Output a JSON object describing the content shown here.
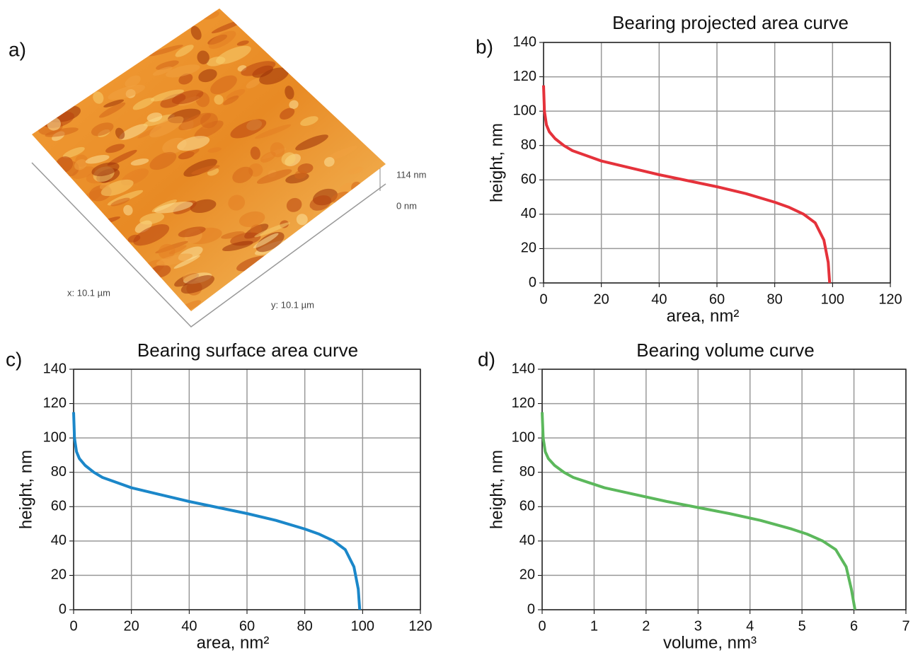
{
  "image": {
    "panel_label": "a)",
    "z_max": "114 nm",
    "z_min": "0 nm",
    "x_size": "x: 10.1 µm",
    "y_size": "y: 10.1 µm"
  },
  "chart_data": [
    {
      "type": "line",
      "panel_label": "b)",
      "title": "Bearing projected area curve",
      "xlabel": "area, nm²",
      "ylabel": "height, nm",
      "color": "#e5323b",
      "x": [
        0,
        0.3,
        1,
        2,
        4,
        7,
        10,
        15,
        20,
        30,
        40,
        50,
        60,
        70,
        80,
        85,
        90,
        94,
        97,
        98.5,
        99
      ],
      "values": [
        115,
        100,
        92,
        88,
        84,
        80,
        77,
        74,
        71,
        67,
        63,
        59.5,
        56,
        52,
        47,
        44,
        40,
        35,
        25,
        12,
        0
      ],
      "xlim": [
        0,
        120
      ],
      "xticks": [
        0,
        20,
        40,
        60,
        80,
        100,
        120
      ],
      "ylim": [
        0,
        140
      ],
      "yticks": [
        0,
        20,
        40,
        60,
        80,
        100,
        120,
        140
      ],
      "grid": true
    },
    {
      "type": "line",
      "panel_label": "c)",
      "title": "Bearing surface area curve",
      "xlabel": "area, nm²",
      "ylabel": "height, nm",
      "color": "#1b87c9",
      "x": [
        0,
        0.3,
        1,
        2,
        4,
        7,
        10,
        15,
        20,
        30,
        40,
        50,
        60,
        70,
        80,
        85,
        90,
        94,
        97,
        98.5,
        99
      ],
      "values": [
        115,
        100,
        92,
        88,
        84,
        80,
        77,
        74,
        71,
        67,
        63,
        59.5,
        56,
        52,
        47,
        44,
        40,
        35,
        25,
        12,
        0
      ],
      "xlim": [
        0,
        120
      ],
      "xticks": [
        0,
        20,
        40,
        60,
        80,
        100,
        120
      ],
      "ylim": [
        0,
        140
      ],
      "yticks": [
        0,
        20,
        40,
        60,
        80,
        100,
        120,
        140
      ],
      "grid": true
    },
    {
      "type": "line",
      "panel_label": "d)",
      "title": "Bearing volume curve",
      "xlabel": "volume, nm³",
      "ylabel": "height, nm",
      "color": "#5cb85c",
      "x": [
        0,
        0.02,
        0.06,
        0.12,
        0.24,
        0.42,
        0.6,
        0.9,
        1.2,
        1.8,
        2.4,
        3.0,
        3.6,
        4.2,
        4.8,
        5.1,
        5.4,
        5.65,
        5.85,
        5.95,
        6.02
      ],
      "values": [
        115,
        100,
        92,
        88,
        84,
        80,
        77,
        74,
        71,
        67,
        63,
        59.5,
        56,
        52,
        47,
        44,
        40,
        35,
        25,
        12,
        0
      ],
      "xlim": [
        0,
        7
      ],
      "xticks": [
        0,
        1,
        2,
        3,
        4,
        5,
        6,
        7
      ],
      "ylim": [
        0,
        140
      ],
      "yticks": [
        0,
        20,
        40,
        60,
        80,
        100,
        120,
        140
      ],
      "grid": true
    }
  ]
}
